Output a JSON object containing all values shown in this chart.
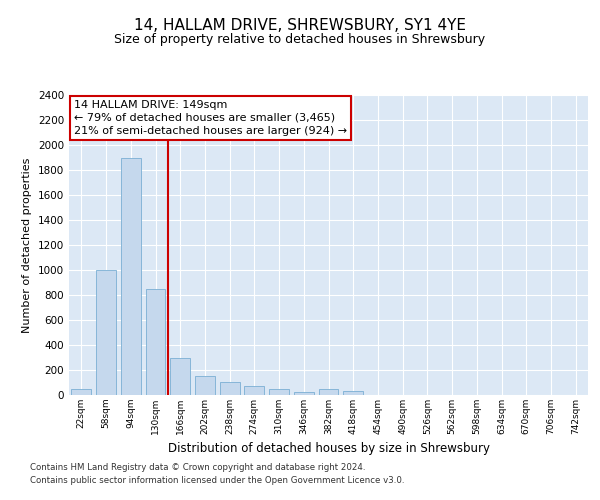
{
  "title": "14, HALLAM DRIVE, SHREWSBURY, SY1 4YE",
  "subtitle": "Size of property relative to detached houses in Shrewsbury",
  "xlabel": "Distribution of detached houses by size in Shrewsbury",
  "ylabel": "Number of detached properties",
  "categories": [
    "22sqm",
    "58sqm",
    "94sqm",
    "130sqm",
    "166sqm",
    "202sqm",
    "238sqm",
    "274sqm",
    "310sqm",
    "346sqm",
    "382sqm",
    "418sqm",
    "454sqm",
    "490sqm",
    "526sqm",
    "562sqm",
    "598sqm",
    "634sqm",
    "670sqm",
    "706sqm",
    "742sqm"
  ],
  "values": [
    50,
    1000,
    1900,
    850,
    300,
    150,
    105,
    70,
    50,
    28,
    50,
    32,
    0,
    0,
    0,
    0,
    0,
    0,
    0,
    0,
    0
  ],
  "bar_color": "#c5d8ed",
  "bar_edge_color": "#7aafd4",
  "background_color": "#dce8f5",
  "grid_color": "#ffffff",
  "red_line_x": 3.5,
  "red_line_color": "#cc0000",
  "annotation_text": "14 HALLAM DRIVE: 149sqm\n← 79% of detached houses are smaller (3,465)\n21% of semi-detached houses are larger (924) →",
  "annotation_box_color": "#ffffff",
  "annotation_box_edge": "#cc0000",
  "ylim": [
    0,
    2400
  ],
  "yticks": [
    0,
    200,
    400,
    600,
    800,
    1000,
    1200,
    1400,
    1600,
    1800,
    2000,
    2200,
    2400
  ],
  "footer_line1": "Contains HM Land Registry data © Crown copyright and database right 2024.",
  "footer_line2": "Contains public sector information licensed under the Open Government Licence v3.0.",
  "title_fontsize": 11,
  "subtitle_fontsize": 9,
  "xlabel_fontsize": 8.5,
  "ylabel_fontsize": 8,
  "annotation_fontsize": 8,
  "tick_fontsize": 7.5,
  "xtick_fontsize": 6.5
}
